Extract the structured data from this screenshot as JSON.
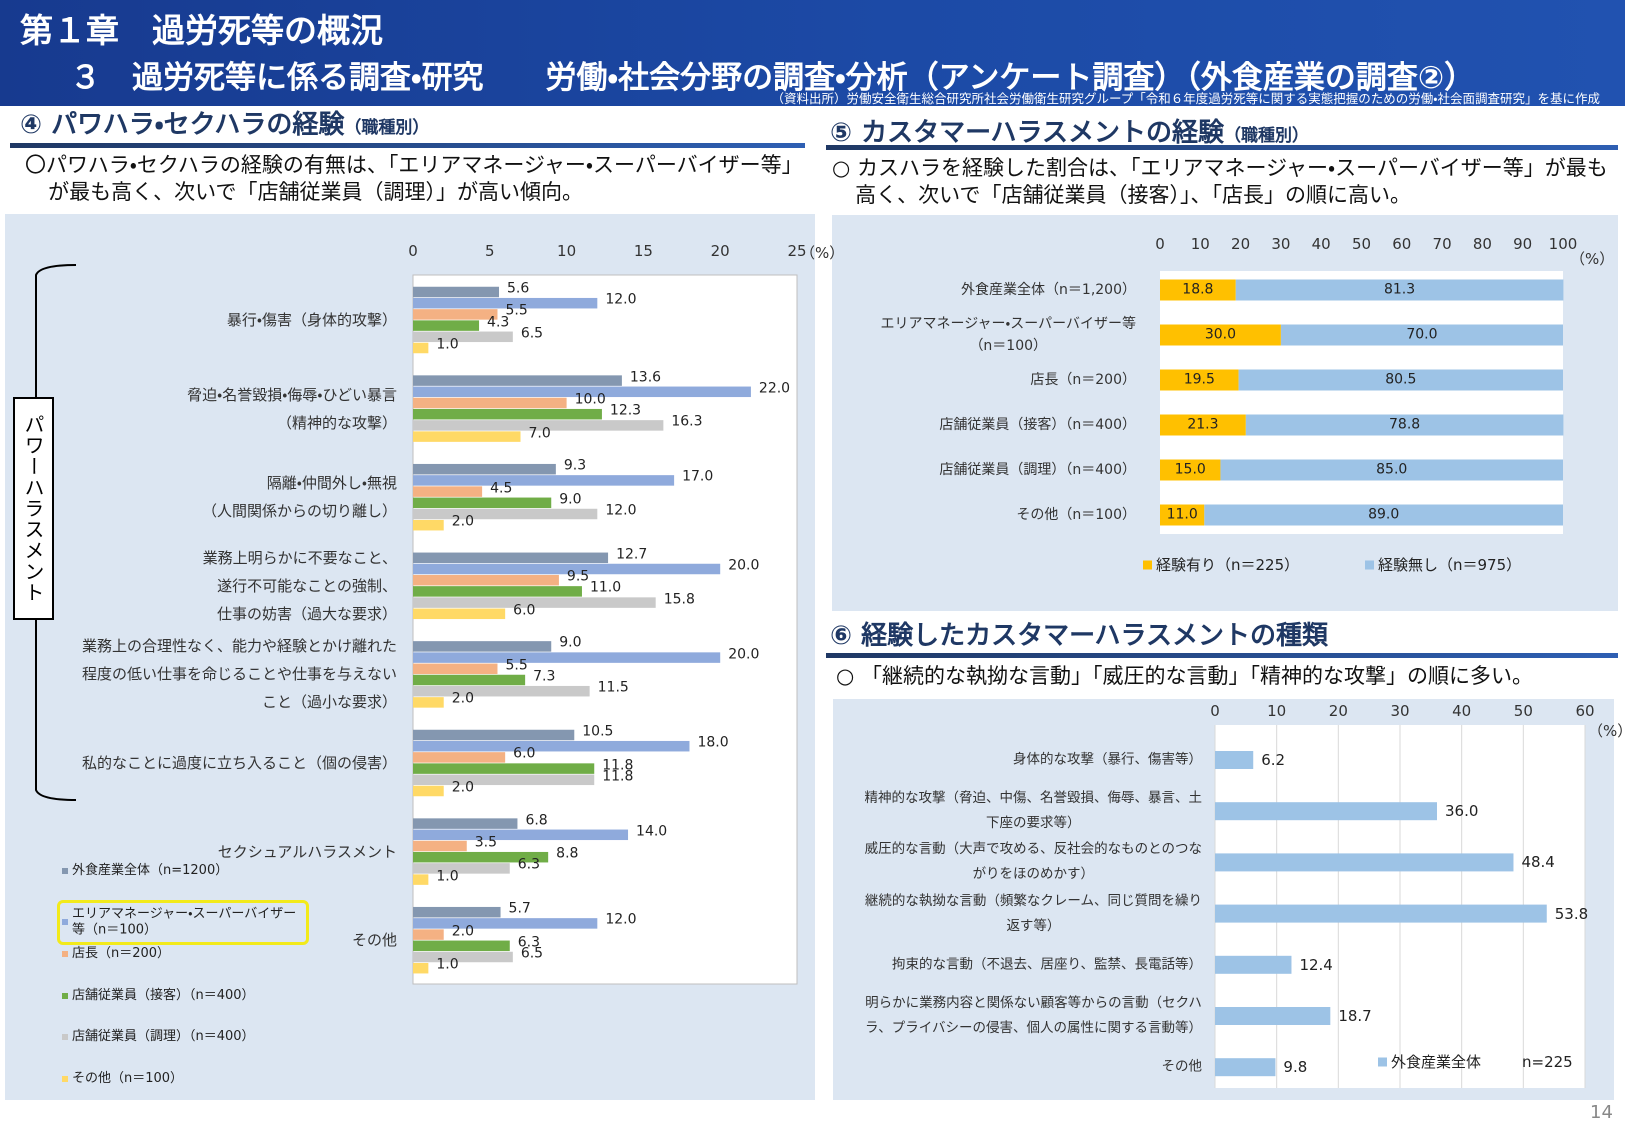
{
  "header": {
    "chapter": "第１章　過労死等の概況",
    "section": "３　過労死等に係る調査・研究　　労働・社会分野の調査・分析（アンケート調査）（外食産業の調査②）",
    "source": "（資料出所）労働安全衛生総合研究所社会労働衛生研究グループ「令和６年度過労死等に関する実態把握のための労働・社会面調査研究」を基に作成"
  },
  "page_number": "14",
  "chart_data": [
    {
      "type": "bar",
      "orientation": "horizontal",
      "title": "④ パワハラ・セクハラの経験",
      "subtitle": "（職種別）",
      "description": "〇パワハラ・セクハラの経験の有無は、「エリアマネージャー・スーパーバイザー等」が最も高く、次いで「店舗従業員（調理）」が高い傾向。",
      "bracket_label": "パワーハラスメント",
      "xlabel": "（%）",
      "categories": [
        "暴行・傷害（身体的攻撃）",
        "脅迫・名誉毀損・侮辱・ひどい暴言\n（精神的な攻撃）",
        "隔離・仲間外し・無視\n（人間関係からの切り離し）",
        "業務上明らかに不要なこと、\n遂行不可能なことの強制、\n仕事の妨害（過大な要求）",
        "業務上の合理性なく、能力や経験とかけ離れた\n程度の低い仕事を命じることや仕事を与えない\nこと（過小な要求）",
        "私的なことに過度に立ち入ること（個の侵害）",
        "セクシュアルハラスメント",
        "その他"
      ],
      "series": [
        {
          "name": "外食産業全体（n=1200）",
          "color": "#8497b0",
          "values": [
            5.6,
            13.6,
            9.3,
            12.7,
            9.0,
            10.5,
            6.8,
            5.7
          ],
          "value_labels": [
            "5.6",
            "13.6",
            "9.3",
            "12.7",
            "9.0",
            "10.5",
            "6.8",
            "5.7"
          ]
        },
        {
          "name": "エリアマネージャー・スーパーバイザー等（n＝100）",
          "color": "#8faadc",
          "values": [
            12.0,
            22.0,
            17.0,
            20.0,
            20.0,
            18.0,
            14.0,
            12.0
          ],
          "value_labels": [
            "12.0",
            "22.0",
            "17.0",
            "20.0",
            "20.0",
            "18.0",
            "14.0",
            "12.0"
          ]
        },
        {
          "name": "店長（n＝200）",
          "color": "#f4b183",
          "values": [
            5.5,
            10.0,
            4.5,
            9.5,
            5.5,
            6.0,
            3.5,
            2.0
          ],
          "value_labels": [
            "5.5",
            "10.0",
            "4.5",
            "9.5",
            "5.5",
            "6.0",
            "3.5",
            "2.0"
          ]
        },
        {
          "name": "店舗従業員（接客）（n＝400）",
          "color": "#70ad47",
          "values": [
            4.3,
            12.3,
            9.0,
            11.0,
            7.3,
            11.8,
            8.8,
            6.3
          ],
          "value_labels": [
            "4.3",
            "12.3",
            "9.0",
            "11.0",
            "7.3",
            "11.8",
            "8.8",
            "6.3"
          ]
        },
        {
          "name": "店舗従業員（調理）（n＝400）",
          "color": "#c9c9c9",
          "values": [
            6.5,
            16.3,
            12.0,
            15.8,
            11.5,
            11.8,
            6.3,
            6.5
          ],
          "value_labels": [
            "6.5",
            "16.3",
            "12.0",
            "15.8",
            "11.5",
            "11.8",
            "6.3",
            "6.5"
          ]
        },
        {
          "name": "その他（n＝100）",
          "color": "#ffd966",
          "values": [
            1.0,
            7.0,
            2.0,
            6.0,
            2.0,
            2.0,
            1.0,
            1.0
          ],
          "value_labels": [
            "1.0",
            "7.0",
            "2.0",
            "6.0",
            "2.0",
            "2.0",
            "1.0",
            "1.0"
          ]
        }
      ],
      "xlim": [
        0,
        25
      ],
      "xticks": [
        0,
        5,
        10,
        15,
        20,
        25
      ],
      "legend": "bottom-left"
    },
    {
      "type": "stacked_bar",
      "orientation": "horizontal",
      "title": "⑤ カスタマーハラスメントの経験",
      "subtitle": "（職種別）",
      "description": "○ カスハラを経験した割合は、「エリアマネージャー・スーパーバイザー等」が最も高く、次いで「店舗従業員（接客）」、「店長」の順に高い。",
      "xlabel": "（%）",
      "categories": [
        "外食産業全体（n＝1,200）",
        "エリアマネージャー・スーパーバイザー等\n（n＝100）",
        "店長（n＝200）",
        "店舗従業員（接客）（n＝400）",
        "店舗従業員（調理）（n＝400）",
        "その他（n＝100）"
      ],
      "series": [
        {
          "name": "経験有り（n＝225）",
          "color": "#ffc000",
          "values": [
            18.8,
            30.0,
            19.5,
            21.3,
            15.0,
            11.0
          ],
          "value_labels": [
            "18.8",
            "30.0",
            "19.5",
            "21.3",
            "15.0",
            "11.0"
          ]
        },
        {
          "name": "経験無し（n＝975）",
          "color": "#9dc3e6",
          "values": [
            81.3,
            70.0,
            80.5,
            78.8,
            85.0,
            89.0
          ],
          "value_labels": [
            "81.3",
            "70.0",
            "80.5",
            "78.8",
            "85.0",
            "89.0"
          ]
        }
      ],
      "xlim": [
        0,
        100
      ],
      "xticks": [
        0,
        10,
        20,
        30,
        40,
        50,
        60,
        70,
        80,
        90,
        100
      ],
      "legend": "bottom"
    },
    {
      "type": "bar",
      "orientation": "horizontal",
      "title": "⑥ 経験したカスタマーハラスメントの種類",
      "description": "○ 「継続的な執拗な言動」「威圧的な言動」「精神的な攻撃」の順に多い。",
      "xlabel": "（%）",
      "annotation": "n=225",
      "categories": [
        "身体的な攻撃（暴行、傷害等）",
        "精神的な攻撃（脅迫、中傷、名誉毀損、侮辱、暴言、土\n下座の要求等）",
        "威圧的な言動（大声で攻める、反社会的なものとのつな\nがりをほのめかす）",
        "継続的な執拗な言動（頻繁なクレーム、同じ質問を繰り\n返す等）",
        "拘束的な言動（不退去、居座り、監禁、長電話等）",
        "明らかに業務内容と関係ない顧客等からの言動（セクハ\nラ、プライバシーの侵害、個人の属性に関する言動等）",
        "その他"
      ],
      "series": [
        {
          "name": "外食産業全体",
          "color": "#9dc3e6",
          "values": [
            6.2,
            36.0,
            48.4,
            53.8,
            12.4,
            18.7,
            9.8
          ],
          "value_labels": [
            "6.2",
            "36.0",
            "48.4",
            "53.8",
            "12.4",
            "18.7",
            "9.8"
          ]
        }
      ],
      "xlim": [
        0,
        60
      ],
      "xticks": [
        0,
        10,
        20,
        30,
        40,
        50,
        60
      ],
      "grid": true,
      "legend": "bottom-right"
    }
  ]
}
